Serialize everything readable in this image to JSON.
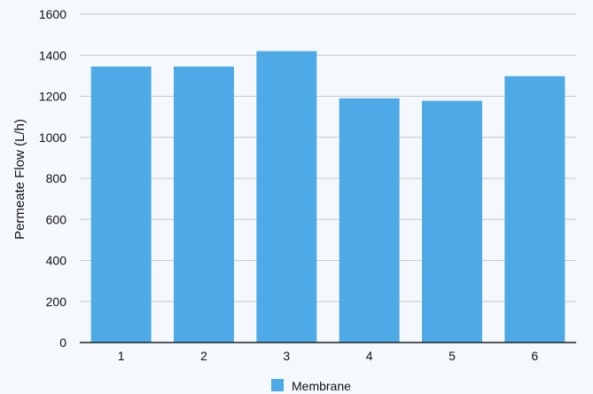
{
  "chart_data": {
    "type": "bar",
    "title": "",
    "xlabel": "",
    "ylabel": "Permeate Flow (L/h)",
    "categories": [
      "1",
      "2",
      "3",
      "4",
      "5",
      "6"
    ],
    "series": [
      {
        "name": "Membrane",
        "values": [
          1345,
          1345,
          1420,
          1190,
          1178,
          1298
        ],
        "color": "#4eaae6"
      }
    ],
    "ylim": [
      0,
      1600
    ],
    "yticks": [
      0,
      200,
      400,
      600,
      800,
      1000,
      1200,
      1400,
      1600
    ],
    "grid": true,
    "legend_position": "bottom-center"
  }
}
